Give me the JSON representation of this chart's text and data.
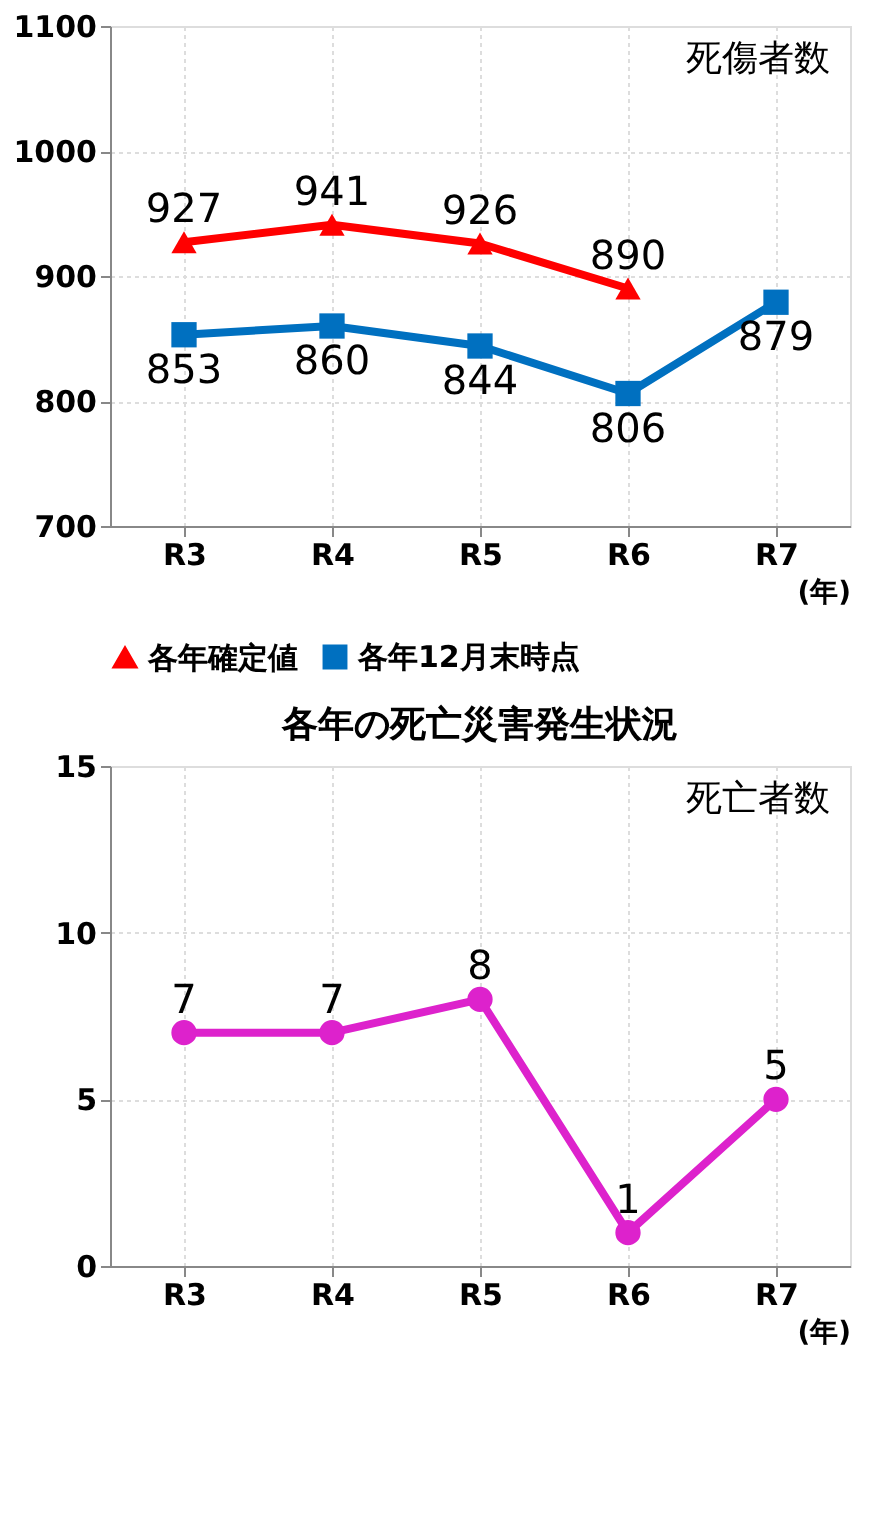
{
  "chart_data": [
    {
      "type": "line",
      "categories": [
        "R3",
        "R4",
        "R5",
        "R6",
        "R7"
      ],
      "xlabel": "(年)",
      "ylim": [
        700,
        1100
      ],
      "yticks": [
        700,
        800,
        900,
        1000,
        1100
      ],
      "grid": true,
      "legend": "bottom",
      "data_labels": true,
      "annotations": [
        "死傷者数"
      ],
      "series": [
        {
          "name": "各年確定値",
          "color": "#ff0000",
          "marker": "triangle",
          "values": [
            927,
            941,
            926,
            890,
            null
          ]
        },
        {
          "name": "各年12月末時点",
          "color": "#0070c0",
          "marker": "square",
          "values": [
            853,
            860,
            844,
            806,
            879
          ]
        }
      ]
    },
    {
      "type": "line",
      "title": "各年の死亡災害発生状況",
      "categories": [
        "R3",
        "R4",
        "R5",
        "R6",
        "R7"
      ],
      "xlabel": "(年)",
      "ylim": [
        0,
        15
      ],
      "yticks": [
        0,
        5,
        10,
        15
      ],
      "grid": true,
      "data_labels": true,
      "annotations": [
        "死亡者数"
      ],
      "series": [
        {
          "color": "#dd22cc",
          "marker": "circle",
          "values": [
            7,
            7,
            8,
            1,
            5
          ]
        }
      ]
    }
  ]
}
